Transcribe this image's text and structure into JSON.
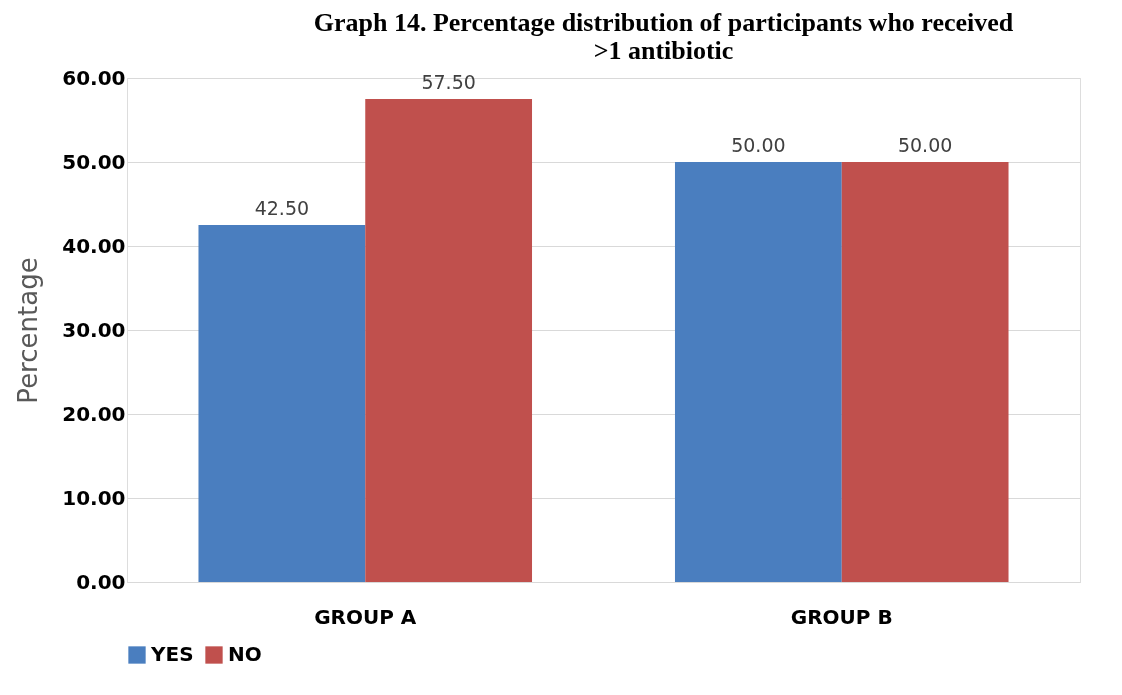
{
  "chart_data": {
    "type": "bar",
    "title": "Graph 14. Percentage distribution of participants who received >1 antibiotic",
    "ylabel": "Percentage",
    "categories": [
      "GROUP A",
      "GROUP B"
    ],
    "series": [
      {
        "name": "YES",
        "color": "#4a7ebf",
        "values": [
          42.5,
          50.0
        ],
        "value_labels": [
          "42.50",
          "50.00"
        ]
      },
      {
        "name": "NO",
        "color": "#c0504d",
        "values": [
          57.5,
          50.0
        ],
        "value_labels": [
          "57.50",
          "50.00"
        ]
      }
    ],
    "ylim": [
      0,
      60
    ],
    "yticks": [
      {
        "value": 0,
        "label": "0.00"
      },
      {
        "value": 10,
        "label": "10.00"
      },
      {
        "value": 20,
        "label": "20.00"
      },
      {
        "value": 30,
        "label": "30.00"
      },
      {
        "value": 40,
        "label": "40.00"
      },
      {
        "value": 50,
        "label": "50.00"
      },
      {
        "value": 60,
        "label": "60.00"
      }
    ],
    "grid": "y",
    "legend": "bottom"
  }
}
